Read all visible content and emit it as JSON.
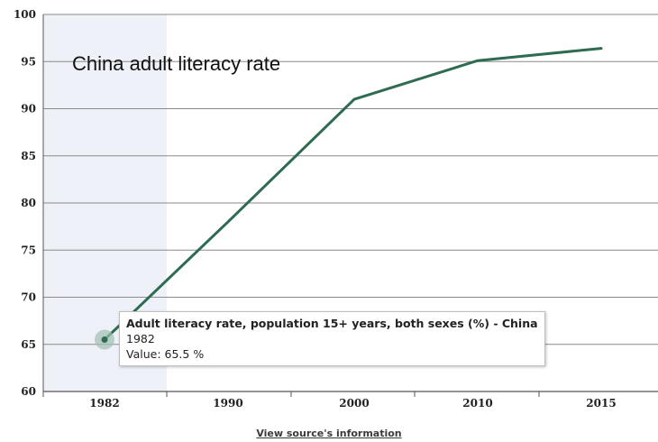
{
  "title": "China adult literacy rate",
  "colors": {
    "line": "#2e6b50",
    "highlight_band": "#eef2f8",
    "grid": "#8a8a8a",
    "point_halo": "#9fbfb0"
  },
  "tooltip": {
    "title": "Adult literacy rate, population 15+ years, both sexes (%) - China",
    "year": "1982",
    "value_prefix": "Value: ",
    "value": "65.5",
    "unit": " %"
  },
  "source_link": "View source's information",
  "chart_data": {
    "type": "line",
    "title": "China adult literacy rate",
    "x": [
      "1982",
      "1990",
      "2000",
      "2010",
      "2015"
    ],
    "series": [
      {
        "values": [
          65.5,
          78.0,
          91.0,
          95.1,
          96.4
        ]
      }
    ],
    "y_ticks": [
      60,
      65,
      70,
      75,
      80,
      85,
      90,
      95,
      100
    ],
    "ylim": [
      60,
      100
    ],
    "grid": true,
    "highlighted_point": "1982"
  }
}
